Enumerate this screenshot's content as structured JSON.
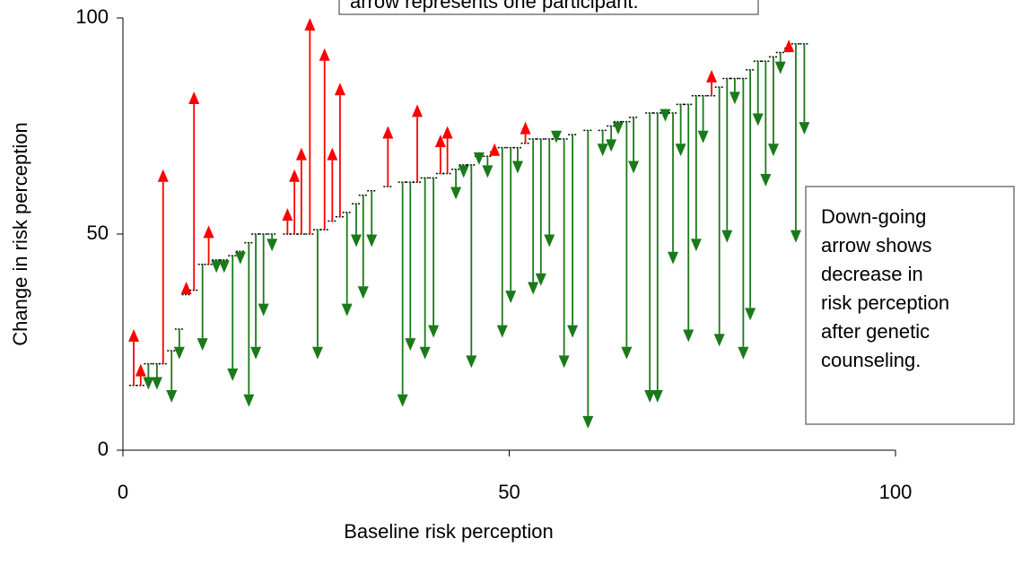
{
  "chart_data": {
    "type": "arrow",
    "xlabel": "Baseline risk perception",
    "ylabel": "Change in risk perception",
    "annotations": [
      {
        "lines": [
          "arrow represents one participant."
        ]
      },
      {
        "lines": [
          "Down-going",
          "arrow shows",
          "decrease in",
          "risk perception",
          "after genetic",
          "counseling."
        ]
      }
    ],
    "xlim": [
      0,
      100
    ],
    "ylim": [
      0,
      100
    ],
    "xticks": [
      0,
      50,
      100
    ],
    "yticks": [
      0,
      50,
      100
    ],
    "up_color": "#ff0000",
    "down_color": "#1a7a1a",
    "x": [
      1.4,
      2.3,
      3.3,
      4.4,
      5.2,
      6.3,
      7.3,
      8.2,
      9.2,
      10.3,
      11.1,
      12.1,
      13.1,
      14.2,
      15.2,
      16.3,
      17.2,
      18.2,
      19.3,
      21.3,
      22.2,
      23.1,
      24.2,
      25.2,
      26.1,
      27.1,
      28.1,
      29.0,
      30.2,
      31.1,
      32.2,
      34.3,
      36.2,
      37.2,
      38.1,
      39.1,
      40.2,
      41.1,
      42.0,
      43.1,
      44.1,
      45.1,
      46.1,
      47.2,
      48.1,
      49.1,
      50.2,
      51.1,
      52.1,
      53.1,
      54.1,
      55.2,
      56.1,
      57.1,
      58.2,
      60.2,
      62.1,
      63.2,
      64.1,
      65.2,
      66.1,
      68.2,
      69.2,
      70.2,
      71.2,
      72.2,
      73.2,
      74.2,
      75.1,
      76.2,
      77.2,
      78.2,
      79.2,
      80.3,
      81.2,
      82.2,
      83.2,
      84.2,
      85.1,
      86.2,
      87.1,
      88.2
    ],
    "baseline": [
      15,
      15,
      20,
      20,
      20,
      23,
      28,
      36,
      37,
      43,
      43,
      44,
      44,
      45,
      46,
      48,
      50,
      50,
      50,
      50,
      50,
      50,
      50,
      51,
      51,
      53,
      54,
      55,
      57,
      59,
      60,
      61,
      62,
      62,
      62,
      63,
      63,
      64,
      64,
      65,
      66,
      66,
      68,
      68,
      69,
      70,
      70,
      70,
      71,
      72,
      72,
      72,
      72,
      72,
      73,
      74,
      74,
      75,
      76,
      76,
      77,
      78,
      78,
      78,
      78,
      80,
      80,
      82,
      82,
      82,
      84,
      86,
      86,
      86,
      88,
      90,
      90,
      91,
      92,
      93,
      94,
      94
    ],
    "after": [
      28,
      20,
      14,
      14,
      65,
      11,
      21,
      39,
      83,
      23,
      52,
      41,
      41,
      16,
      43,
      10,
      21,
      31,
      46,
      56,
      65,
      70,
      100,
      21,
      93,
      70,
      85,
      31,
      47,
      35,
      47,
      75,
      10,
      23,
      80,
      21,
      26,
      73,
      75,
      58,
      63,
      19,
      66,
      63,
      71,
      26,
      34,
      64,
      76,
      36,
      38,
      47,
      71,
      19,
      26,
      5,
      68,
      69,
      73,
      21,
      64,
      11,
      11,
      76,
      43,
      68,
      25,
      46,
      71,
      88,
      24,
      48,
      80,
      21,
      30,
      75,
      61,
      68,
      87,
      95,
      48,
      73
    ]
  }
}
